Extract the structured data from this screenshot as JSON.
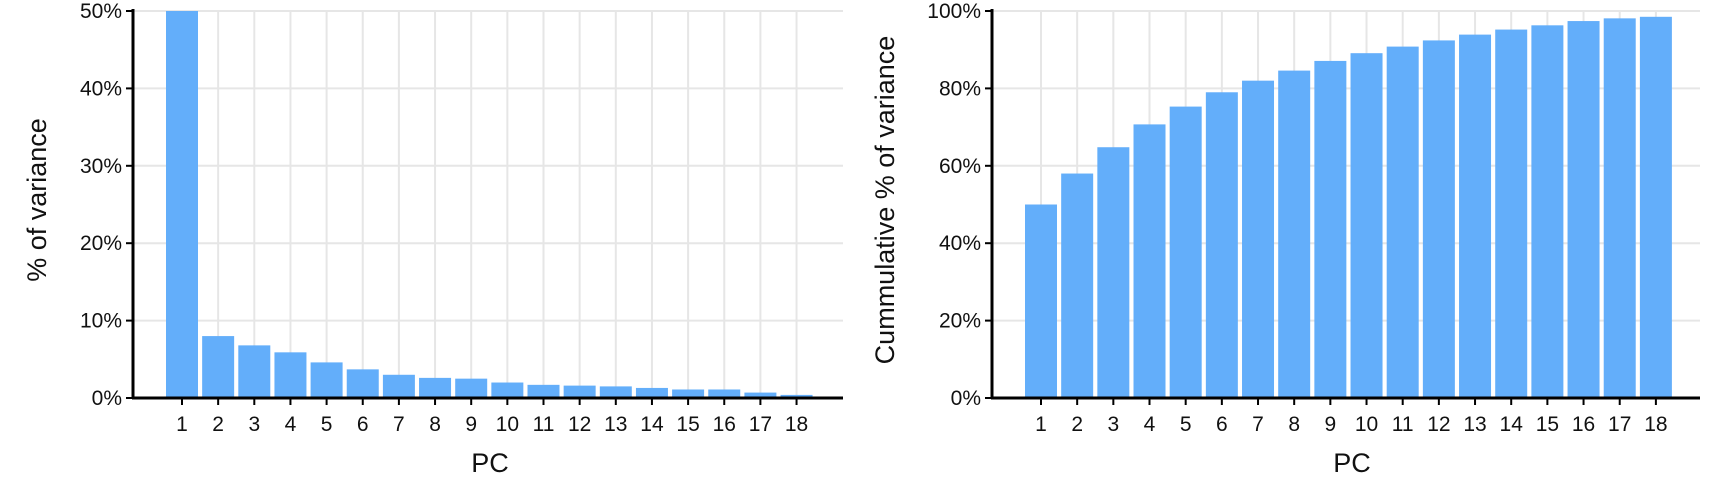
{
  "colors": {
    "bar": "#63AEFA",
    "grid": "#E6E6E6",
    "axis": "#000000",
    "text": "#111111"
  },
  "chart_data": [
    {
      "type": "bar",
      "title": "",
      "xlabel": "PC",
      "ylabel": "% of variance",
      "categories": [
        "1",
        "2",
        "3",
        "4",
        "5",
        "6",
        "7",
        "8",
        "9",
        "10",
        "11",
        "12",
        "13",
        "14",
        "15",
        "16",
        "17",
        "18"
      ],
      "values": [
        50.0,
        8.0,
        6.8,
        5.9,
        4.6,
        3.7,
        3.0,
        2.6,
        2.5,
        2.0,
        1.7,
        1.6,
        1.5,
        1.3,
        1.1,
        1.1,
        0.7,
        0.4
      ],
      "ylim": [
        0,
        50
      ],
      "yticks": [
        "0%",
        "10%",
        "20%",
        "30%",
        "40%",
        "50%"
      ],
      "grid": true
    },
    {
      "type": "bar",
      "title": "",
      "xlabel": "PC",
      "ylabel": "Cummulative % of variance",
      "categories": [
        "1",
        "2",
        "3",
        "4",
        "5",
        "6",
        "7",
        "8",
        "9",
        "10",
        "11",
        "12",
        "13",
        "14",
        "15",
        "16",
        "17",
        "18"
      ],
      "values": [
        50.0,
        58.0,
        64.8,
        70.7,
        75.3,
        79.0,
        82.0,
        84.6,
        87.1,
        89.1,
        90.8,
        92.4,
        93.9,
        95.2,
        96.3,
        97.4,
        98.1,
        98.5
      ],
      "ylim": [
        0,
        100
      ],
      "yticks": [
        "0%",
        "20%",
        "40%",
        "60%",
        "80%",
        "100%"
      ],
      "grid": true
    }
  ]
}
